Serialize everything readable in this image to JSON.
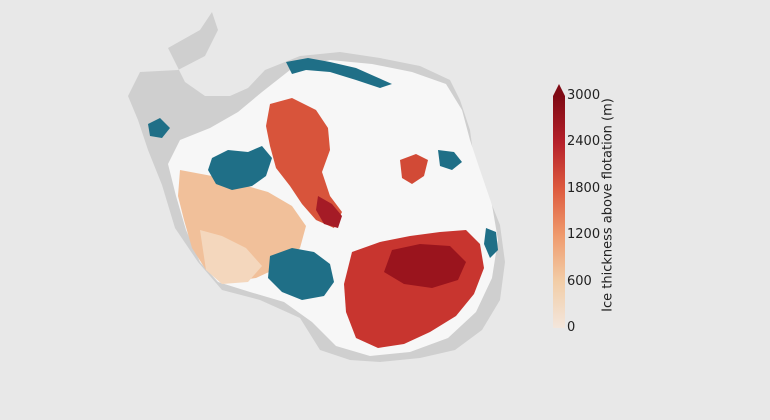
{
  "map": {
    "region": "Antarctica",
    "colors": {
      "background": "#e8e8e8",
      "land_light": "#f7f7f7",
      "ice_shelf_grey": "#c9c9c9",
      "floating_ice_blue": "#1f6f87"
    },
    "colorbar": {
      "label": "Ice thickness above flotation (m)",
      "min": 0,
      "max": 3000,
      "extend": "max",
      "ticks": [
        {
          "value": 0,
          "label": "0"
        },
        {
          "value": 600,
          "label": "600"
        },
        {
          "value": 1200,
          "label": "1200"
        },
        {
          "value": 1800,
          "label": "1800"
        },
        {
          "value": 2400,
          "label": "2400"
        },
        {
          "value": 3000,
          "label": "3000"
        }
      ],
      "color_stops": [
        "#f3e6dc",
        "#f2cda7",
        "#ef9a6d",
        "#dd5a3e",
        "#b5202a",
        "#7f0a14"
      ]
    }
  }
}
